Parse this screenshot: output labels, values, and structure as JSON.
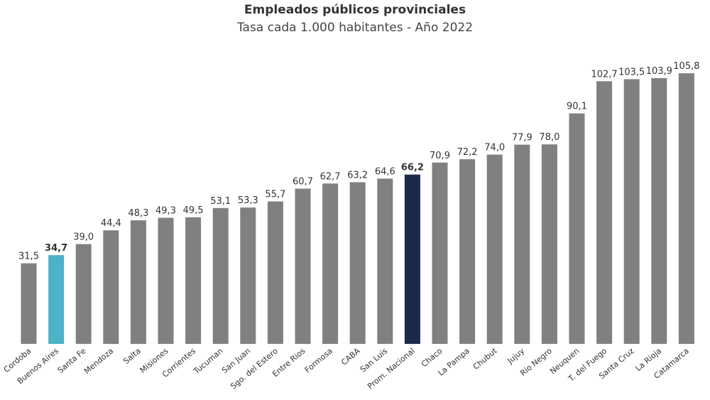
{
  "chart_data": {
    "type": "bar",
    "title": "Empleados públicos provinciales",
    "subtitle": "Tasa cada 1.000 habitantes - Año 2022",
    "categories": [
      "Cordoba",
      "Buenos Aires",
      "Santa Fe",
      "Mendoza",
      "Salta",
      "Misiones",
      "Corrientes",
      "Tucuman",
      "San Juan",
      "Sgo. del Estero",
      "Entre Rios",
      "Formosa",
      "CABA",
      "San Luis",
      "Prom. Nacional",
      "Chaco",
      "La Pampa",
      "Chubut",
      "Jujuy",
      "Rio Negro",
      "Neuquen",
      "T. del Fuego",
      "Santa Cruz",
      "La Rioja",
      "Catamarca"
    ],
    "values": [
      31.5,
      34.7,
      39.0,
      44.4,
      48.3,
      49.3,
      49.5,
      53.1,
      53.3,
      55.7,
      60.7,
      62.7,
      63.2,
      64.6,
      66.2,
      70.9,
      72.2,
      74.0,
      77.9,
      78.0,
      90.1,
      102.7,
      103.5,
      103.9,
      105.8
    ],
    "value_labels": [
      "31,5",
      "34,7",
      "39,0",
      "44,4",
      "48,3",
      "49,3",
      "49,5",
      "53,1",
      "53,3",
      "55,7",
      "60,7",
      "62,7",
      "63,2",
      "64,6",
      "66,2",
      "70,9",
      "72,2",
      "74,0",
      "77,9",
      "78,0",
      "90,1",
      "102,7",
      "103,5",
      "103,9",
      "105,8"
    ],
    "highlights": {
      "Buenos Aires": "#4ab3c8",
      "Prom. Nacional": "#1b2a4a"
    },
    "colors": {
      "default_bar": "#808080",
      "text": "#333333"
    },
    "ylim": [
      0,
      110
    ],
    "grid": false,
    "legend": "none"
  }
}
